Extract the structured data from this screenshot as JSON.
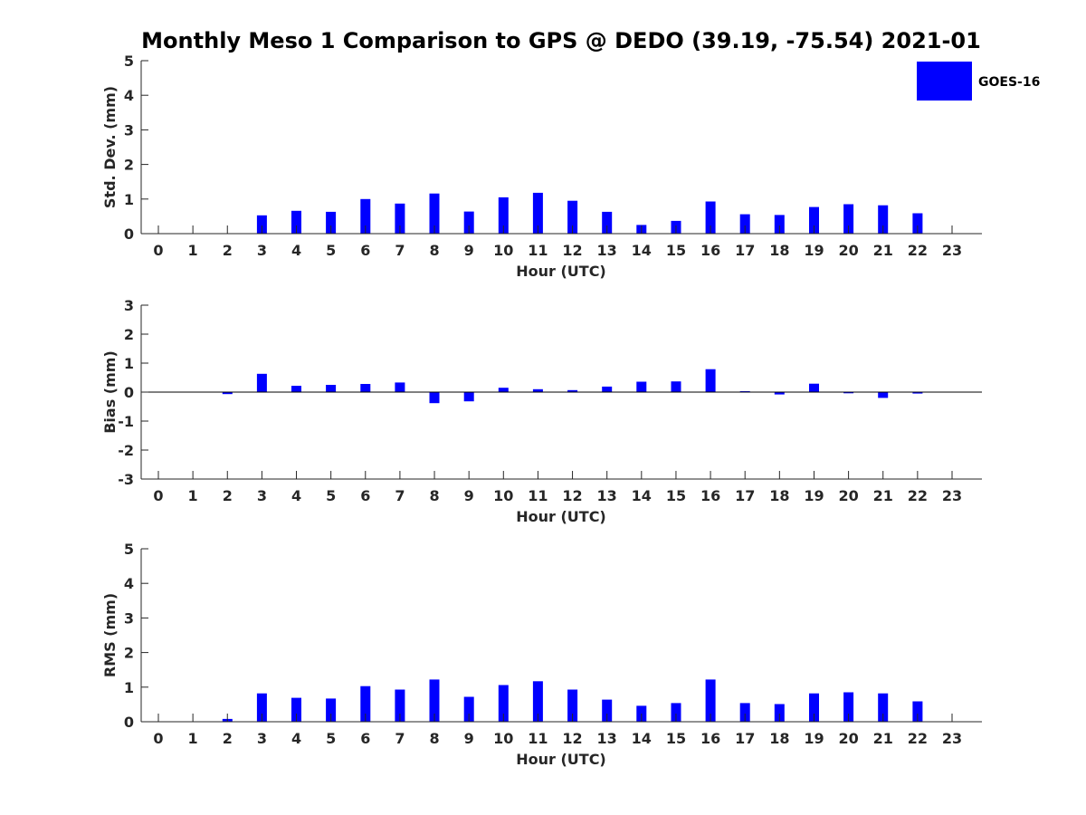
{
  "title": "Monthly Meso 1 Comparison to GPS @ DEDO (39.19, -75.54) 2021-01",
  "legend": {
    "label": "GOES-16",
    "color": "#0000ff"
  },
  "chart_data": [
    {
      "type": "bar",
      "xlabel": "Hour (UTC)",
      "ylabel": "Std. Dev. (mm)",
      "categories": [
        "0",
        "1",
        "2",
        "3",
        "4",
        "5",
        "6",
        "7",
        "8",
        "9",
        "10",
        "11",
        "12",
        "13",
        "14",
        "15",
        "16",
        "17",
        "18",
        "19",
        "20",
        "21",
        "22",
        "23"
      ],
      "series": [
        {
          "name": "GOES-16",
          "values": [
            null,
            null,
            null,
            0.53,
            0.66,
            0.63,
            1.0,
            0.87,
            1.16,
            0.64,
            1.05,
            1.18,
            0.95,
            0.63,
            0.25,
            0.37,
            0.93,
            0.56,
            0.54,
            0.77,
            0.85,
            0.82,
            0.59,
            null
          ]
        }
      ],
      "ylim": [
        0,
        5
      ],
      "yticks": [
        0,
        1,
        2,
        3,
        4,
        5
      ],
      "legend_position": "top-right"
    },
    {
      "type": "bar",
      "xlabel": "Hour (UTC)",
      "ylabel": "Bias (mm)",
      "categories": [
        "0",
        "1",
        "2",
        "3",
        "4",
        "5",
        "6",
        "7",
        "8",
        "9",
        "10",
        "11",
        "12",
        "13",
        "14",
        "15",
        "16",
        "17",
        "18",
        "19",
        "20",
        "21",
        "22",
        "23"
      ],
      "series": [
        {
          "name": "GOES-16",
          "values": [
            null,
            null,
            -0.07,
            0.63,
            0.22,
            0.25,
            0.28,
            0.33,
            -0.38,
            -0.32,
            0.15,
            0.1,
            0.07,
            0.19,
            0.36,
            0.37,
            0.79,
            0.03,
            -0.08,
            0.29,
            -0.04,
            -0.2,
            -0.05,
            null
          ]
        }
      ],
      "ylim": [
        -3,
        3
      ],
      "yticks": [
        -3,
        -2,
        -1,
        0,
        1,
        2,
        3
      ]
    },
    {
      "type": "bar",
      "xlabel": "Hour (UTC)",
      "ylabel": "RMS (mm)",
      "categories": [
        "0",
        "1",
        "2",
        "3",
        "4",
        "5",
        "6",
        "7",
        "8",
        "9",
        "10",
        "11",
        "12",
        "13",
        "14",
        "15",
        "16",
        "17",
        "18",
        "19",
        "20",
        "21",
        "22",
        "23"
      ],
      "series": [
        {
          "name": "GOES-16",
          "values": [
            null,
            null,
            0.08,
            0.82,
            0.69,
            0.67,
            1.03,
            0.93,
            1.22,
            0.72,
            1.06,
            1.17,
            0.93,
            0.64,
            0.46,
            0.54,
            1.22,
            0.54,
            0.51,
            0.82,
            0.85,
            0.82,
            0.59,
            null
          ]
        }
      ],
      "ylim": [
        0,
        5
      ],
      "yticks": [
        0,
        1,
        2,
        3,
        4,
        5
      ]
    }
  ]
}
